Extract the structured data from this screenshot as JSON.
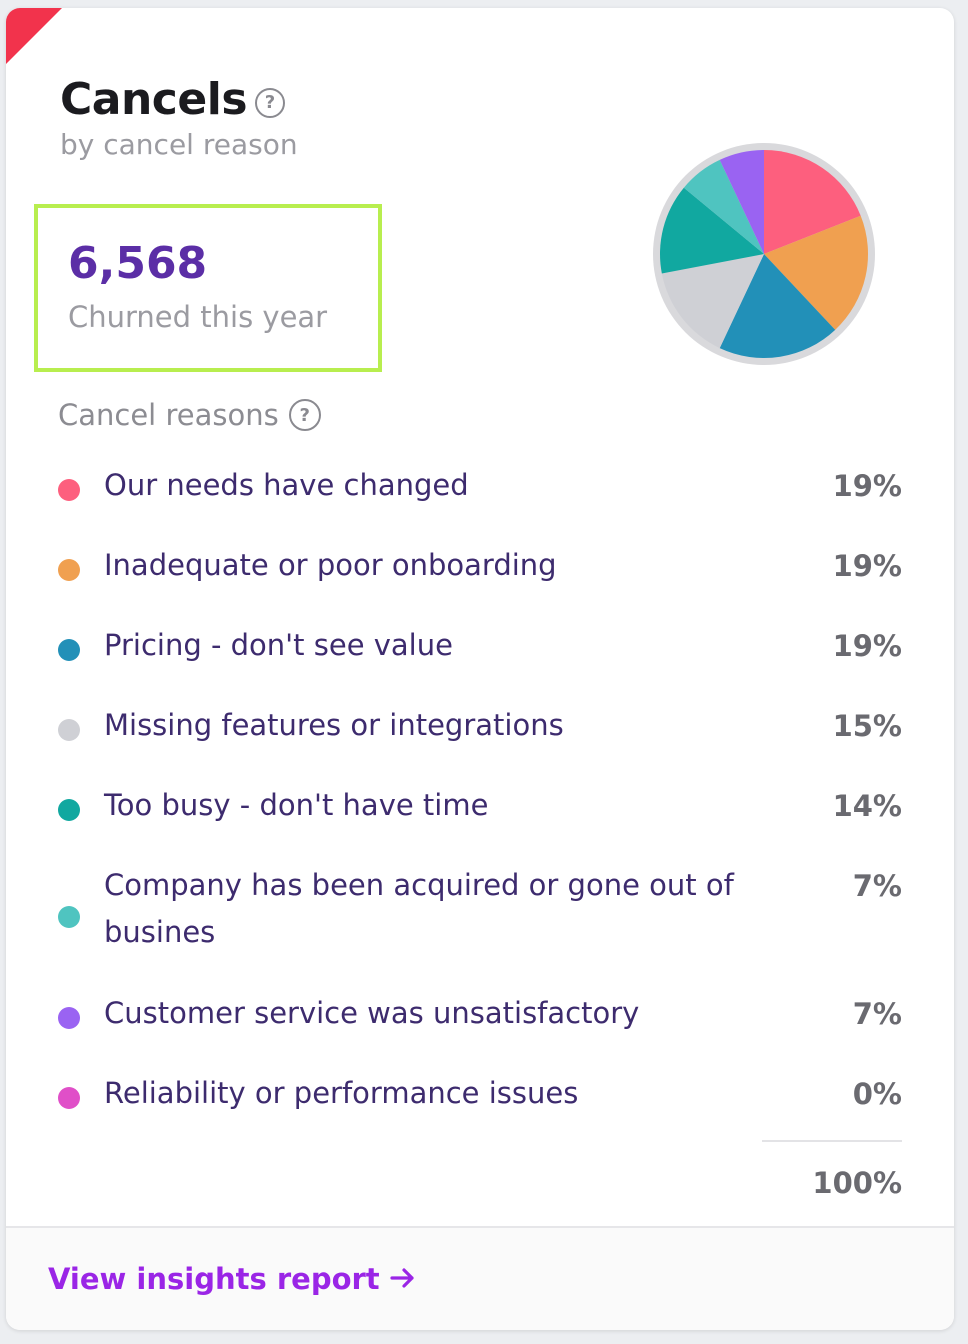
{
  "card": {
    "title": "Cancels",
    "help_glyph": "?",
    "subtitle": "by cancel reason"
  },
  "stat": {
    "value": "6,568",
    "label": "Churned this year"
  },
  "reasons": {
    "title": "Cancel reasons",
    "items": [
      {
        "label": "Our needs have changed",
        "pct_text": "19%",
        "value": 19,
        "color": "#fd5f7e"
      },
      {
        "label": "Inadequate or poor onboarding",
        "pct_text": "19%",
        "value": 19,
        "color": "#f0a050"
      },
      {
        "label": "Pricing - don't see value",
        "pct_text": "19%",
        "value": 19,
        "color": "#2290b8"
      },
      {
        "label": "Missing features or integrations",
        "pct_text": "15%",
        "value": 15,
        "color": "#cfd0d5"
      },
      {
        "label": "Too busy - don't have time",
        "pct_text": "14%",
        "value": 14,
        "color": "#11a8a0"
      },
      {
        "label": "Company has been acquired or gone out of busines",
        "pct_text": "7%",
        "value": 7,
        "color": "#4fc4c0"
      },
      {
        "label": "Customer service was unsatisfactory",
        "pct_text": "7%",
        "value": 7,
        "color": "#9a63f2"
      },
      {
        "label": "Reliability or performance issues",
        "pct_text": "0%",
        "value": 0,
        "color": "#e04fc8"
      }
    ],
    "total": "100%"
  },
  "chart_data": {
    "type": "pie",
    "title": "Cancels by cancel reason",
    "categories": [
      "Our needs have changed",
      "Inadequate or poor onboarding",
      "Pricing - don't see value",
      "Missing features or integrations",
      "Too busy - don't have time",
      "Company has been acquired or gone out of busines",
      "Customer service was unsatisfactory",
      "Reliability or performance issues"
    ],
    "values": [
      19,
      19,
      19,
      15,
      14,
      7,
      7,
      0
    ],
    "colors": [
      "#fd5f7e",
      "#f0a050",
      "#2290b8",
      "#cfd0d5",
      "#11a8a0",
      "#4fc4c0",
      "#9a63f2",
      "#e04fc8"
    ]
  },
  "footer": {
    "link_label": "View insights report",
    "link_icon": "arrow-right-icon"
  },
  "colors": {
    "accent_flag": "#f2334c",
    "stat_value": "#5b2ea6",
    "highlight_box": "#b8ee4f",
    "link": "#9a25e6"
  }
}
